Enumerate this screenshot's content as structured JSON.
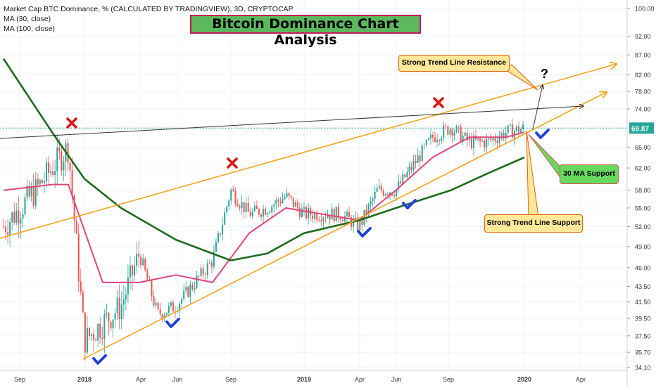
{
  "header": {
    "symbol_line": "Market Cap BTC Dominance, % (CALCULATED BY TRADINGVIEW), 3D, CRYPTOCAP",
    "ma_lines": [
      "MA (30, close)",
      "MA (100, close)"
    ]
  },
  "annotations": {
    "title": "Bitcoin Dominance Chart Analysis",
    "resistance_label": "Strong Trend Line Resistance",
    "support_label": "Strong Trend Line Support",
    "ma_support_label": "30 MA Support",
    "question_mark": "?"
  },
  "price_tag": "69.87",
  "colors": {
    "up": "#26a69a",
    "down": "#ef5350",
    "ma30": "#e0457b",
    "ma100": "#1e6b1e",
    "trendline": "#f4a31d",
    "check": "#1f3fd6",
    "cross": "#e01414"
  },
  "chart_data": {
    "type": "line",
    "title": "",
    "ylabel": "",
    "xlabel": "",
    "y_scale": "log",
    "x_ticks": [
      "Sep",
      "2018",
      "Apr",
      "Jun",
      "Sep",
      "2019",
      "Apr",
      "Jun",
      "Sep",
      "2020",
      "Apr"
    ],
    "y_ticks": [
      "100.00",
      "92.00",
      "87.00",
      "82.00",
      "78.00",
      "74.00",
      "69.87",
      "66.00",
      "62.00",
      "58.00",
      "55.00",
      "52.00",
      "49.00",
      "46.00",
      "43.50",
      "41.50",
      "39.50",
      "37.50",
      "35.70",
      "34.10"
    ],
    "last_value": 69.87,
    "series": [
      {
        "name": "Market Cap BTC Dominance, %",
        "x": [
          "2017-08",
          "2017-10",
          "2017-11",
          "2017-12",
          "2018-01",
          "2018-03",
          "2018-04",
          "2018-05",
          "2018-06",
          "2018-08",
          "2018-09",
          "2018-10",
          "2018-11",
          "2018-12",
          "2019-01",
          "2019-03",
          "2019-04",
          "2019-05",
          "2019-06",
          "2019-08",
          "2019-09",
          "2019-10",
          "2019-11",
          "2019-12",
          "2020-01"
        ],
        "values": [
          52,
          58,
          62,
          66,
          37,
          41,
          48,
          40,
          41,
          47,
          58,
          54,
          55,
          57,
          54,
          54,
          52,
          58,
          58,
          68,
          70,
          67,
          67,
          69,
          69.87
        ]
      },
      {
        "name": "MA (30, close)",
        "x": [
          "2017-08",
          "2017-11",
          "2017-12",
          "2018-02",
          "2018-04",
          "2018-06",
          "2018-08",
          "2018-10",
          "2018-12",
          "2019-02",
          "2019-04",
          "2019-06",
          "2019-08",
          "2019-10",
          "2019-12",
          "2020-01"
        ],
        "values": [
          58,
          59,
          59,
          44,
          44,
          45,
          44,
          51,
          55,
          54,
          53,
          58,
          64,
          68,
          68,
          69
        ]
      },
      {
        "name": "MA (100, close)",
        "x": [
          "2017-08",
          "2017-11",
          "2018-01",
          "2018-03",
          "2018-06",
          "2018-09",
          "2018-11",
          "2019-01",
          "2019-04",
          "2019-06",
          "2019-09",
          "2019-11",
          "2020-01"
        ],
        "values": [
          86,
          69,
          60,
          55,
          50,
          47,
          48,
          51,
          53,
          55,
          58,
          61,
          64
        ]
      }
    ]
  }
}
